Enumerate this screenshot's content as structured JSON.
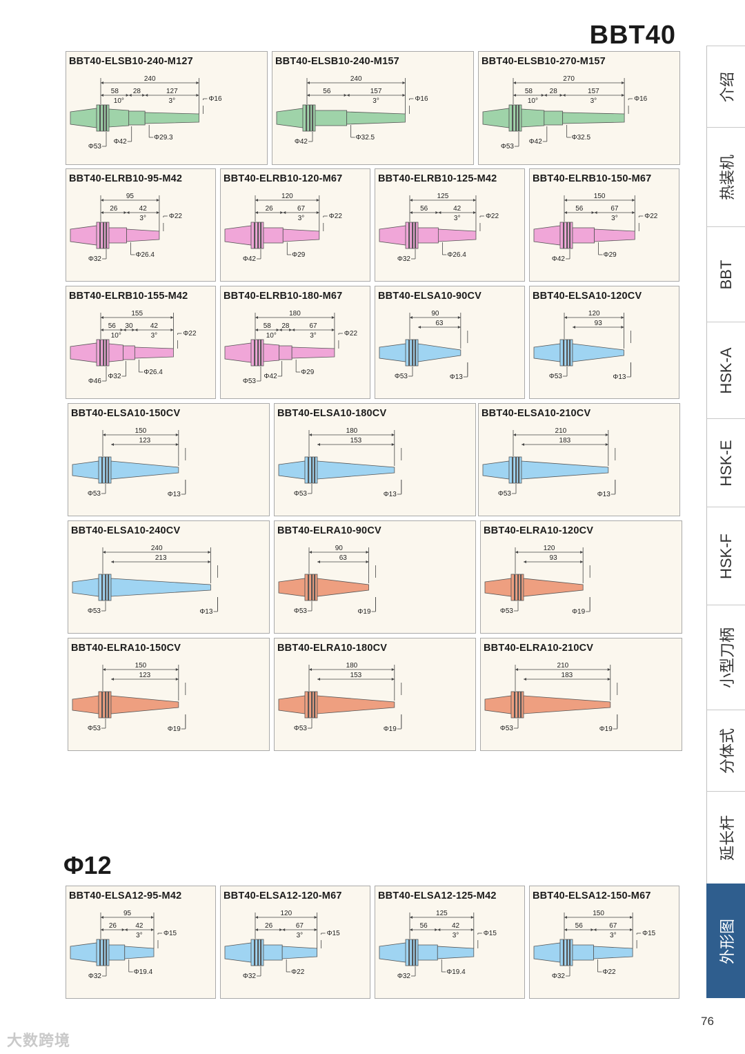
{
  "page": {
    "title": "BBT40",
    "section_title": "Φ12",
    "page_number": "76",
    "watermark": "大数跨境"
  },
  "colors": {
    "green": "#9fd3a9",
    "pink": "#f0a6d8",
    "blue": "#9fd4f2",
    "orange": "#ee9f80",
    "tab_active": "#2f5e8e",
    "card_bg": "#fbf7ee"
  },
  "side_tabs": [
    {
      "label": "介绍",
      "active": false
    },
    {
      "label": "热装机",
      "active": false
    },
    {
      "label": "BBT",
      "active": false
    },
    {
      "label": "HSK-A",
      "active": false
    },
    {
      "label": "HSK-E",
      "active": false
    },
    {
      "label": "HSK-F",
      "active": false
    },
    {
      "label": "小型刀柄",
      "active": false
    },
    {
      "label": "分体式",
      "active": false
    },
    {
      "label": "延长杆",
      "active": false
    },
    {
      "label": "外形图",
      "active": true
    }
  ],
  "cards": [
    {
      "title": "BBT40-ELSB10-240-M127",
      "kind": "B3",
      "color": "green",
      "len": "240",
      "seg1": "58",
      "seg2": "28",
      "seg3": "127",
      "ang1": "10°",
      "ang2": "3°",
      "tip": "Φ16",
      "d1": "Φ53",
      "d2": "Φ42",
      "d3": "Φ29.3",
      "fill_frac": 0.62
    },
    {
      "title": "BBT40-ELSB10-240-M157",
      "kind": "B2",
      "color": "green",
      "len": "240",
      "seg1": "56",
      "seg3": "157",
      "ang2": "3°",
      "tip": "Φ16",
      "d2": "Φ42",
      "d3": "Φ32.5",
      "fill_frac": 0.62
    },
    {
      "title": "BBT40-ELSB10-270-M157",
      "kind": "B3",
      "color": "green",
      "len": "270",
      "seg1": "58",
      "seg2": "28",
      "seg3": "157",
      "ang1": "10°",
      "ang2": "3°",
      "tip": "Φ16",
      "d1": "Φ53",
      "d2": "Φ42",
      "d3": "Φ32.5",
      "fill_frac": 0.7
    },
    {
      "title": "BBT40-ELRB10-95-M42",
      "kind": "R2",
      "color": "pink",
      "len": "95",
      "seg1": "26",
      "seg3": "42",
      "ang2": "3°",
      "tip": "Φ22",
      "d2": "Φ32",
      "d3": "Φ26.4",
      "fill_frac": 0.55
    },
    {
      "title": "BBT40-ELRB10-120-M67",
      "kind": "R2",
      "color": "pink",
      "len": "120",
      "seg1": "26",
      "seg3": "67",
      "ang2": "3°",
      "tip": "Φ22",
      "d2": "Φ42",
      "d3": "Φ29",
      "fill_frac": 0.6
    },
    {
      "title": "BBT40-ELRB10-125-M42",
      "kind": "R2",
      "color": "pink",
      "len": "125",
      "seg1": "56",
      "seg3": "42",
      "ang2": "3°",
      "tip": "Φ22",
      "d2": "Φ32",
      "d3": "Φ26.4",
      "fill_frac": 0.62
    },
    {
      "title": "BBT40-ELRB10-150-M67",
      "kind": "R2",
      "color": "pink",
      "len": "150",
      "seg1": "56",
      "seg3": "67",
      "ang2": "3°",
      "tip": "Φ22",
      "d2": "Φ42",
      "d3": "Φ29",
      "fill_frac": 0.66
    },
    {
      "title": "BBT40-ELRB10-155-M42",
      "kind": "R3",
      "color": "pink",
      "len": "155",
      "seg1": "56",
      "seg2": "30",
      "seg3": "42",
      "ang1": "10°",
      "ang2": "3°",
      "tip": "Φ22",
      "d1": "Φ46",
      "d2": "Φ32",
      "d3": "Φ26.4",
      "fill_frac": 0.68
    },
    {
      "title": "BBT40-ELRB10-180-M67",
      "kind": "R3",
      "color": "pink",
      "len": "180",
      "seg1": "58",
      "seg2": "28",
      "seg3": "67",
      "ang1": "10°",
      "ang2": "3°",
      "tip": "Φ22",
      "d1": "Φ53",
      "d2": "Φ42",
      "d3": "Φ29",
      "fill_frac": 0.74
    },
    {
      "title": "BBT40-ELSA10-90CV",
      "kind": "C",
      "color": "blue",
      "len": "90",
      "seg1": "63",
      "d1": "Φ53",
      "d3": "Φ13",
      "fill_frac": 0.48
    },
    {
      "title": "BBT40-ELSA10-120CV",
      "kind": "C",
      "color": "blue",
      "len": "120",
      "seg1": "93",
      "d1": "Φ53",
      "d3": "Φ13",
      "fill_frac": 0.56
    },
    {
      "title": "BBT40-ELSA10-150CV",
      "kind": "C",
      "color": "blue",
      "len": "150",
      "seg1": "123",
      "d1": "Φ53",
      "d3": "Φ13",
      "fill_frac": 0.48
    },
    {
      "title": "BBT40-ELSA10-180CV",
      "kind": "C",
      "color": "blue",
      "len": "180",
      "seg1": "153",
      "d1": "Φ53",
      "d3": "Φ13",
      "fill_frac": 0.54
    },
    {
      "title": "BBT40-ELSA10-210CV",
      "kind": "C",
      "color": "blue",
      "len": "210",
      "seg1": "183",
      "d1": "Φ53",
      "d3": "Φ13",
      "fill_frac": 0.6
    },
    {
      "title": "BBT40-ELSA10-240CV",
      "kind": "C",
      "color": "blue",
      "len": "240",
      "seg1": "213",
      "d1": "Φ53",
      "d3": "Φ13",
      "fill_frac": 0.68
    },
    {
      "title": "BBT40-ELRA10-90CV",
      "kind": "C",
      "color": "orange",
      "len": "90",
      "seg1": "63",
      "d1": "Φ53",
      "d3": "Φ19",
      "fill_frac": 0.38
    },
    {
      "title": "BBT40-ELRA10-120CV",
      "kind": "C",
      "color": "orange",
      "len": "120",
      "seg1": "93",
      "d1": "Φ53",
      "d3": "Φ19",
      "fill_frac": 0.43
    },
    {
      "title": "BBT40-ELRA10-150CV",
      "kind": "C",
      "color": "orange",
      "len": "150",
      "seg1": "123",
      "d1": "Φ53",
      "d3": "Φ19",
      "fill_frac": 0.48
    },
    {
      "title": "BBT40-ELRA10-180CV",
      "kind": "C",
      "color": "orange",
      "len": "180",
      "seg1": "153",
      "d1": "Φ53",
      "d3": "Φ19",
      "fill_frac": 0.54
    },
    {
      "title": "BBT40-ELRA10-210CV",
      "kind": "C",
      "color": "orange",
      "len": "210",
      "seg1": "183",
      "d1": "Φ53",
      "d3": "Φ19",
      "fill_frac": 0.6
    },
    {
      "title": "BBT40-ELSA12-95-M42",
      "kind": "R2",
      "color": "blue",
      "len": "95",
      "seg1": "26",
      "seg3": "42",
      "ang2": "3°",
      "tip": "Φ15",
      "d2": "Φ32",
      "d3": "Φ19.4",
      "fill_frac": 0.5
    },
    {
      "title": "BBT40-ELSA12-120-M67",
      "kind": "R2",
      "color": "blue",
      "len": "120",
      "seg1": "26",
      "seg3": "67",
      "ang2": "3°",
      "tip": "Φ15",
      "d2": "Φ32",
      "d3": "Φ22",
      "fill_frac": 0.58
    },
    {
      "title": "BBT40-ELSA12-125-M42",
      "kind": "R2",
      "color": "blue",
      "len": "125",
      "seg1": "56",
      "seg3": "42",
      "ang2": "3°",
      "tip": "Φ15",
      "d2": "Φ32",
      "d3": "Φ19.4",
      "fill_frac": 0.6
    },
    {
      "title": "BBT40-ELSA12-150-M67",
      "kind": "R2",
      "color": "blue",
      "len": "150",
      "seg1": "56",
      "seg3": "67",
      "ang2": "3°",
      "tip": "Φ15",
      "d2": "Φ32",
      "d3": "Φ22",
      "fill_frac": 0.64
    }
  ]
}
